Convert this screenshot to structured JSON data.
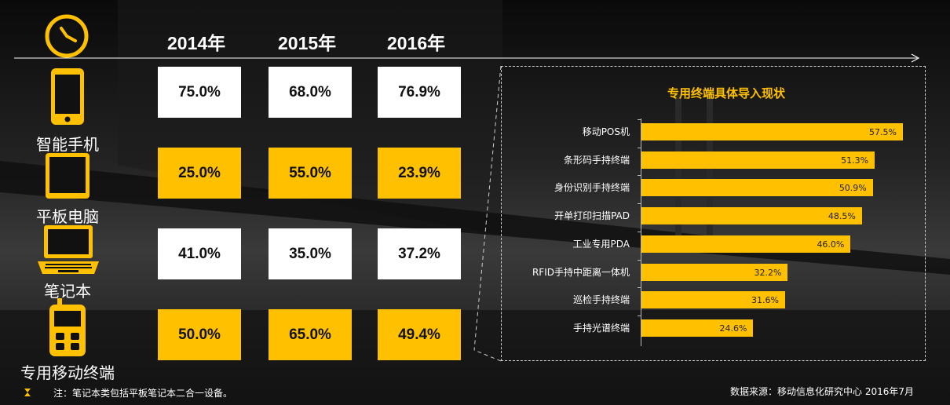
{
  "years": [
    "2014年",
    "2015年",
    "2016年"
  ],
  "rows": [
    {
      "label": "智能手机",
      "values": [
        "75.0%",
        "68.0%",
        "76.9%"
      ],
      "style": "white"
    },
    {
      "label": "平板电脑",
      "values": [
        "25.0%",
        "55.0%",
        "23.9%"
      ],
      "style": "yellow"
    },
    {
      "label": "笔记本",
      "values": [
        "41.0%",
        "35.0%",
        "37.2%"
      ],
      "style": "white"
    },
    {
      "label": "专用移动终端",
      "values": [
        "50.0%",
        "65.0%",
        "49.4%"
      ],
      "style": "yellow"
    }
  ],
  "colors": {
    "accent": "#FFC000",
    "white": "#FFFFFF"
  },
  "icons": [
    "clock-icon",
    "smartphone-icon",
    "tablet-icon",
    "laptop-icon",
    "handheld-terminal-icon"
  ],
  "chart_data": {
    "type": "bar",
    "orientation": "horizontal",
    "title": "专用终端具体导入现状",
    "categories": [
      "移动POS机",
      "条形码手持终端",
      "身份识别手持终端",
      "开单打印扫描PAD",
      "工业专用PDA",
      "RFID手持中距离一体机",
      "巡检手持终端",
      "手持光谱终端"
    ],
    "values": [
      57.5,
      51.3,
      50.9,
      48.5,
      46.0,
      32.2,
      31.6,
      24.6
    ],
    "value_labels": [
      "57.5%",
      "51.3%",
      "50.9%",
      "48.5%",
      "46.0%",
      "32.2%",
      "31.6%",
      "24.6%"
    ],
    "xlim": [
      0,
      60
    ],
    "grid": false
  },
  "footnote": "注：笔记本类包括平板笔记本二合一设备。",
  "source": "数据来源：移动信息化研究中心 2016年7月"
}
